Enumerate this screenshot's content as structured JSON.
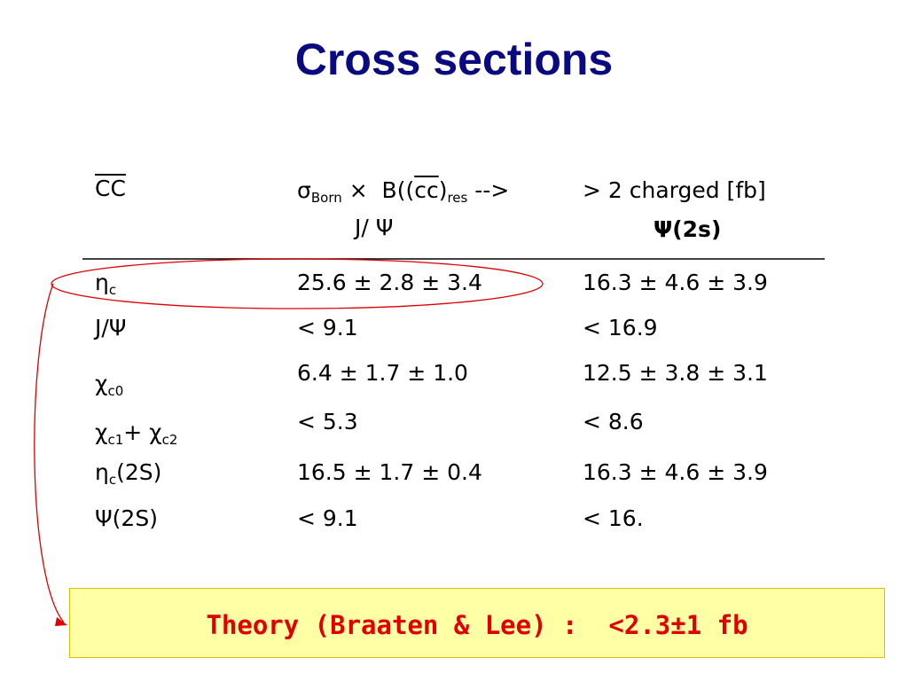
{
  "title": "Cross sections",
  "table": {
    "header": {
      "col0": [
        {
          "text": "CC",
          "over": true
        }
      ],
      "col1_line1": [
        {
          "text": "σ"
        },
        {
          "sub": "Born"
        },
        {
          "text": " ×  B(("
        },
        {
          "text": "cc",
          "over": true
        },
        {
          "text": ")"
        },
        {
          "sub": "res"
        },
        {
          "text": " -->"
        }
      ],
      "col1_line2": "J/ Ψ",
      "col2_line1": "> 2 charged [fb]",
      "col2_line2": "Ψ(2s)"
    },
    "rows": [
      {
        "label": [
          {
            "text": "η"
          },
          {
            "sub": "c"
          }
        ],
        "cells": [
          "25.6 ± 2.8 ± 3.4",
          "16.3 ± 4.6 ± 3.9"
        ]
      },
      {
        "label": [
          {
            "text": "J/Ψ"
          }
        ],
        "cells": [
          "< 9.1",
          "< 16.9"
        ]
      },
      {
        "label": [
          {
            "text": "χ"
          },
          {
            "sub": "c0"
          }
        ],
        "cells": [
          "6.4 ± 1.7 ± 1.0",
          "12.5 ± 3.8 ± 3.1"
        ]
      },
      {
        "label": [
          {
            "text": "χ"
          },
          {
            "sub": "c1"
          },
          {
            "text": "+ χ"
          },
          {
            "sub": "c2"
          }
        ],
        "cells": [
          "< 5.3",
          "< 8.6"
        ]
      },
      {
        "label": [
          {
            "text": "η"
          },
          {
            "sub": "c"
          },
          {
            "text": "(2S)"
          }
        ],
        "cells": [
          "16.5 ± 1.7 ± 0.4",
          "16.3 ± 4.6 ± 3.9"
        ]
      },
      {
        "label": [
          {
            "text": "Ψ(2S)"
          }
        ],
        "cells": [
          "< 9.1",
          "< 16."
        ]
      }
    ]
  },
  "note": "Theory (Braaten & Lee) :  <2.3±1 fb"
}
